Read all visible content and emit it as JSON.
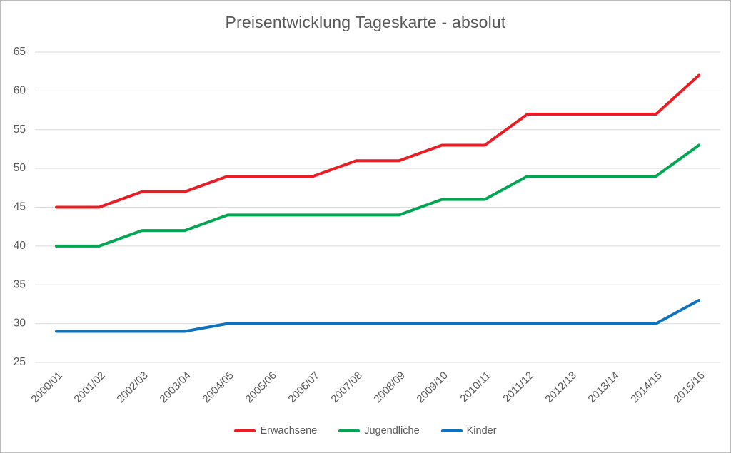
{
  "chart": {
    "title": "Preisentwicklung Tageskarte - absolut"
  },
  "chart_data": {
    "type": "line",
    "title": "Preisentwicklung Tageskarte - absolut",
    "xlabel": "",
    "ylabel": "",
    "categories": [
      "2000/01",
      "2001/02",
      "2002/03",
      "2003/04",
      "2004/05",
      "2005/06",
      "2006/07",
      "2007/08",
      "2008/09",
      "2009/10",
      "2010/11",
      "2011/12",
      "2012/13",
      "2013/14",
      "2014/15",
      "2015/16"
    ],
    "series": [
      {
        "name": "Erwachsene",
        "color": "#ec1c24",
        "values": [
          45,
          45,
          47,
          47,
          49,
          49,
          49,
          51,
          51,
          53,
          53,
          57,
          57,
          57,
          57,
          62
        ]
      },
      {
        "name": "Jugendliche",
        "color": "#00a651",
        "values": [
          40,
          40,
          42,
          42,
          44,
          44,
          44,
          44,
          44,
          46,
          46,
          49,
          49,
          49,
          49,
          53
        ]
      },
      {
        "name": "Kinder",
        "color": "#0d72c0",
        "values": [
          29,
          29,
          29,
          29,
          30,
          30,
          30,
          30,
          30,
          30,
          30,
          30,
          30,
          30,
          30,
          33
        ]
      }
    ],
    "ylim": [
      25,
      65
    ],
    "ytick_step": 5,
    "grid": true,
    "legend_position": "bottom",
    "gridline_color": "#d9d9d9",
    "text_color": "#595959"
  }
}
